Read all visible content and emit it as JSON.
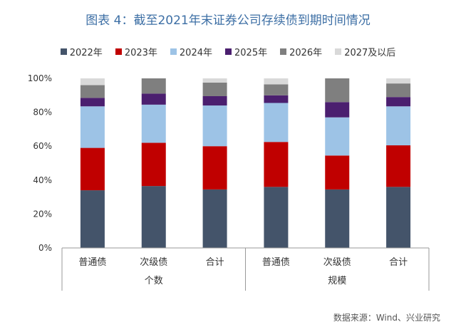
{
  "title": "图表 4：截至2021年末证券公司存续债到期时间情况",
  "source": "数据来源：Wind、兴业研究",
  "chart_data": {
    "type": "bar",
    "stacked": true,
    "categories": [
      "普通债",
      "次级债",
      "合计",
      "普通债",
      "次级债",
      "合计"
    ],
    "groups": [
      {
        "label": "个数",
        "categories": [
          0,
          1,
          2
        ]
      },
      {
        "label": "规模",
        "categories": [
          3,
          4,
          5
        ]
      }
    ],
    "yticks": [
      "0%",
      "20%",
      "40%",
      "60%",
      "80%",
      "100%"
    ],
    "ylim": [
      0,
      100
    ],
    "legend_position": "top",
    "series": [
      {
        "name": "2022年",
        "color": "#44546a",
        "values": [
          34,
          36.5,
          34.5,
          36,
          34.5,
          36
        ]
      },
      {
        "name": "2023年",
        "color": "#c00000",
        "values": [
          25,
          25.5,
          25.5,
          26.5,
          20,
          24.5
        ]
      },
      {
        "name": "2024年",
        "color": "#9dc3e6",
        "values": [
          24.5,
          22.5,
          24,
          23,
          22.5,
          23
        ]
      },
      {
        "name": "2025年",
        "color": "#4b1f6f",
        "values": [
          5,
          6.5,
          5.5,
          4.5,
          9,
          5.5
        ]
      },
      {
        "name": "2026年",
        "color": "#7f7f7f",
        "values": [
          7.5,
          9,
          8,
          6.5,
          14,
          8
        ]
      },
      {
        "name": "2027及以后",
        "color": "#d9d9d9",
        "values": [
          4,
          0,
          2.5,
          3.5,
          0,
          3
        ]
      }
    ]
  }
}
